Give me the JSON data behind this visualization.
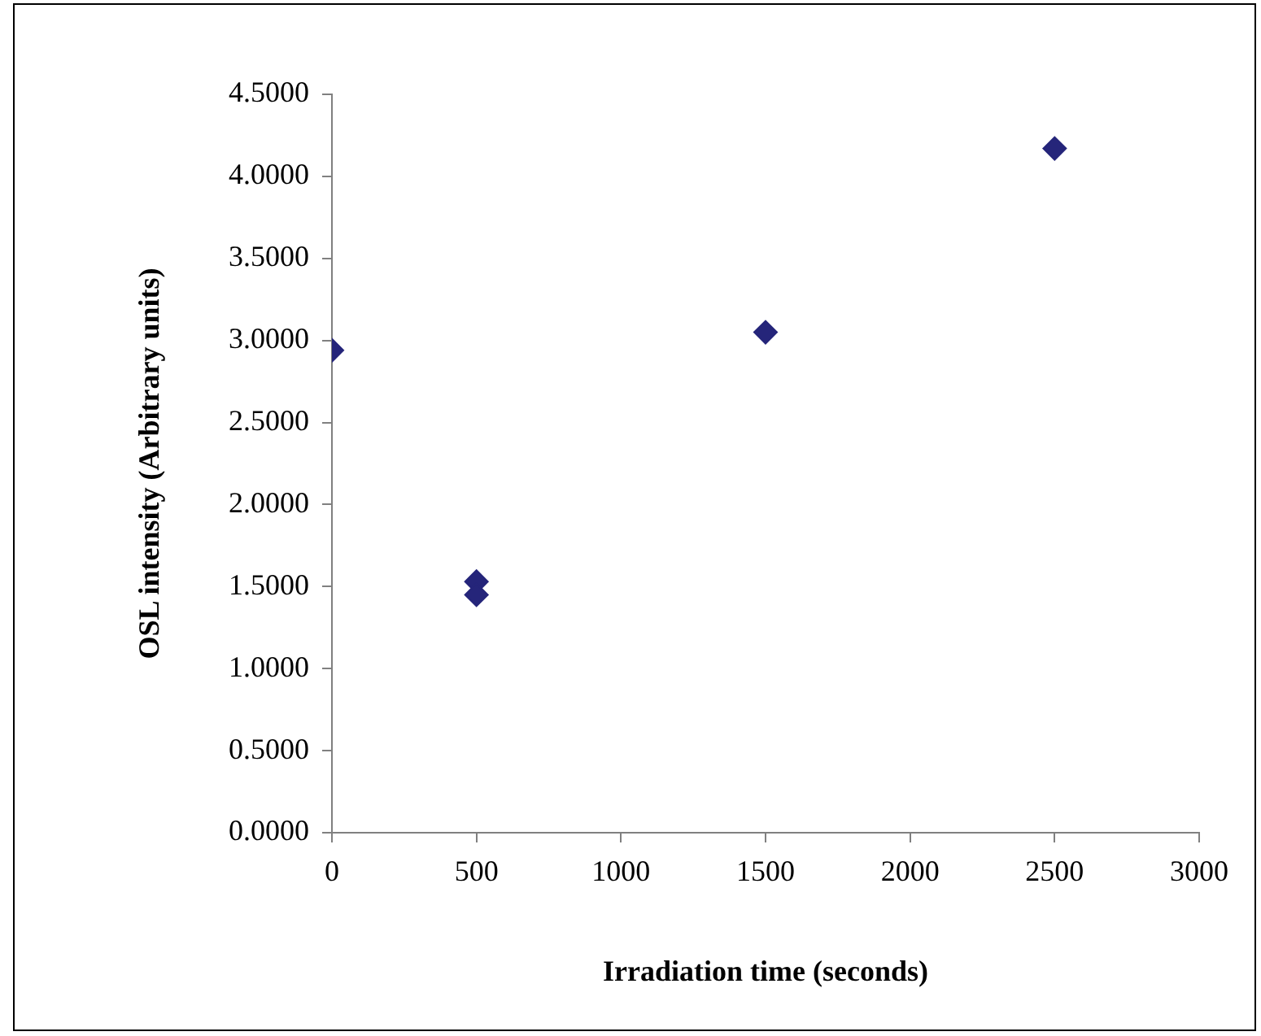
{
  "chart_data": {
    "type": "scatter",
    "xlabel": "Irradiation time (seconds)",
    "ylabel": "OSL intensity (Arbitrary units)",
    "x": [
      0,
      500,
      500,
      1500,
      2500
    ],
    "series": [
      {
        "color": "#25257a",
        "values": [
          2.94,
          1.53,
          1.45,
          3.05,
          4.17
        ]
      }
    ],
    "xlim": [
      0,
      3000
    ],
    "xticks": [
      0,
      500,
      1000,
      1500,
      2000,
      2500,
      3000
    ],
    "ylim": [
      0,
      4.5
    ],
    "yticks": [
      {
        "value": 0,
        "label": "0.0000"
      },
      {
        "value": 0.5,
        "label": "0.5000"
      },
      {
        "value": 1,
        "label": "1.0000"
      },
      {
        "value": 1.5,
        "label": "1.5000"
      },
      {
        "value": 2,
        "label": "2.0000"
      },
      {
        "value": 2.5,
        "label": "2.5000"
      },
      {
        "value": 3,
        "label": "3.0000"
      },
      {
        "value": 3.5,
        "label": "3.5000"
      },
      {
        "value": 4,
        "label": "4.0000"
      },
      {
        "value": 4.5,
        "label": "4.5000"
      }
    ],
    "grid": false,
    "legend": false,
    "marker": "diamond"
  }
}
